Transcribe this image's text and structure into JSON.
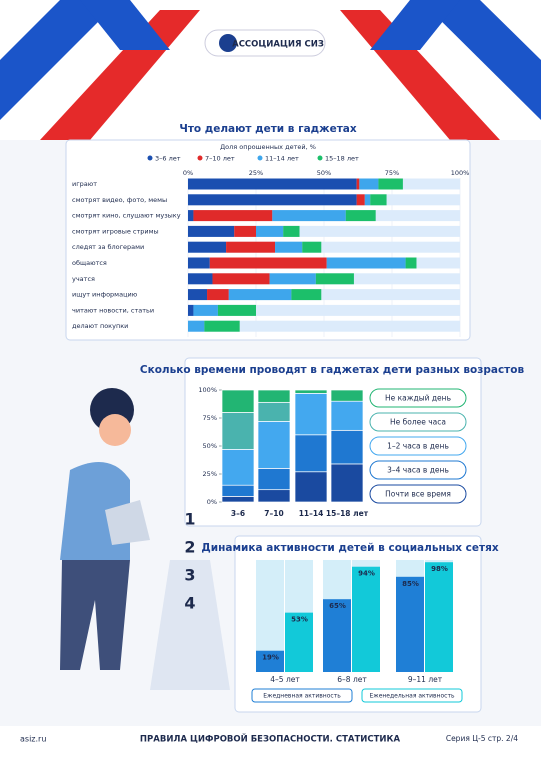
{
  "header": {
    "title": "АССОЦИАЦИЯ СИЗ"
  },
  "footer": {
    "site": "asiz.ru",
    "title": "ПРАВИЛА ЦИФРОВОЙ БЕЗОПАСНОСТИ. СТАТИСТИКА",
    "page": "Серия Ц-5 стр. 2/4"
  },
  "illustration": {
    "steps": [
      "1",
      "2",
      "3",
      "4"
    ]
  },
  "chart_data": [
    {
      "type": "hbar_stacked",
      "title": "Что делают дети в гаджетах",
      "subtitle": "Доля опрошенных детей, %",
      "categories": [
        "играют",
        "смотрят видео, фото, мемы",
        "смотрят кино, слушают музыку",
        "смотрят игровые стримы",
        "следят за блогерами",
        "общаются",
        "учатся",
        "ищут информацию",
        "читают новости, статьи",
        "делают покупки"
      ],
      "series": [
        {
          "name": "3–6 лет",
          "color": "#1b4fb0",
          "values": [
            62,
            62,
            2,
            17,
            14,
            8,
            9,
            7,
            2,
            0
          ]
        },
        {
          "name": "7–10 лет",
          "color": "#e02a2a",
          "values": [
            1,
            3,
            29,
            8,
            18,
            43,
            21,
            8,
            0,
            0
          ]
        },
        {
          "name": "11–14 лет",
          "color": "#3ea6ec",
          "values": [
            7,
            2,
            27,
            10,
            10,
            29,
            17,
            23,
            9,
            6
          ]
        },
        {
          "name": "15–18 лет",
          "color": "#1cbf6a",
          "values": [
            9,
            6,
            11,
            6,
            7,
            4,
            14,
            11,
            14,
            13
          ]
        }
      ],
      "xlim": [
        0,
        100
      ],
      "xticks": [
        {
          "value": 0,
          "label": "0%"
        },
        {
          "value": 25,
          "label": "25%"
        },
        {
          "value": 50,
          "label": "50%"
        },
        {
          "value": 75,
          "label": "75%"
        },
        {
          "value": 100,
          "label": "100%"
        }
      ]
    },
    {
      "type": "column_stacked",
      "title": "Сколько времени проводят в гаджетах дети разных возрастов",
      "categories": [
        "3–6",
        "7–10",
        "11–14",
        "15–18 лет"
      ],
      "series": [
        {
          "name": "Почти все время",
          "color": "#1a4aa0",
          "values": [
            5,
            11,
            27,
            34
          ]
        },
        {
          "name": "3–4 часа в день",
          "color": "#1f78d1",
          "values": [
            10,
            19,
            33,
            30
          ]
        },
        {
          "name": "1–2 часа в день",
          "color": "#43a8ef",
          "values": [
            32,
            42,
            37,
            26
          ]
        },
        {
          "name": "Не более часа",
          "color": "#4ab3ae",
          "values": [
            33,
            17,
            0,
            0
          ]
        },
        {
          "name": "Не каждый день",
          "color": "#22b573",
          "values": [
            20,
            11,
            3,
            10
          ]
        }
      ],
      "ylim": [
        0,
        100
      ],
      "yticks": [
        {
          "value": 0,
          "label": "0%"
        },
        {
          "value": 25,
          "label": "25%"
        },
        {
          "value": 50,
          "label": "50%"
        },
        {
          "value": 75,
          "label": "75%"
        },
        {
          "value": 100,
          "label": "100%"
        }
      ]
    },
    {
      "type": "column_grouped",
      "title": "Динамика активности детей в социальных сетях",
      "categories": [
        "4–5 лет",
        "6–8 лет",
        "9–11 лет"
      ],
      "series": [
        {
          "name": "Ежедневная активность",
          "color": "#1f7fd6",
          "values": [
            19,
            65,
            85
          ],
          "value_labels": [
            "19%",
            "65%",
            "85%"
          ]
        },
        {
          "name": "Еженедельная активность",
          "color": "#12c9d9",
          "values": [
            53,
            94,
            98
          ],
          "value_labels": [
            "53%",
            "94%",
            "98%"
          ]
        }
      ],
      "ylim": [
        0,
        100
      ]
    }
  ]
}
